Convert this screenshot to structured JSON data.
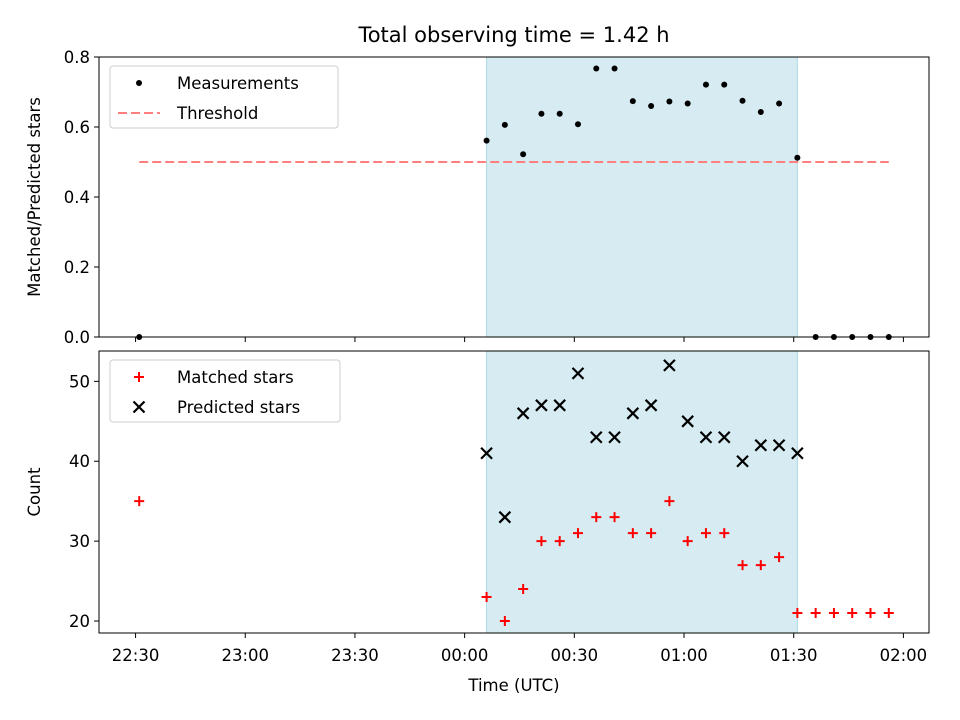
{
  "chart_data": {
    "title": "Total observing time = 1.42 h",
    "xlabel": "Time (UTC)",
    "x_ticks": [
      "22:30",
      "23:00",
      "23:30",
      "00:00",
      "00:30",
      "01:00",
      "01:30",
      "02:00"
    ],
    "x_tick_hours": [
      -1.5,
      -1.0,
      -0.5,
      0.0,
      0.5,
      1.0,
      1.5,
      2.0
    ],
    "xlim": [
      "22:20",
      "02:07"
    ],
    "shaded_span": {
      "start": "00:06",
      "end": "01:31",
      "color": "#add8e6"
    },
    "charts": [
      {
        "type": "scatter",
        "ylabel": "Matched/Predicted stars",
        "ylim": [
          0,
          0.8
        ],
        "yticks": [
          "0.0",
          "0.2",
          "0.4",
          "0.6",
          "0.8"
        ],
        "legend_placement": "upper-left",
        "series": [
          {
            "name": "Measurements",
            "marker": "dot",
            "color": "#000000",
            "x": [
              "22:31",
              "00:06",
              "00:11",
              "00:16",
              "00:21",
              "00:26",
              "00:31",
              "00:36",
              "00:41",
              "00:46",
              "00:51",
              "00:56",
              "01:01",
              "01:06",
              "01:11",
              "01:16",
              "01:21",
              "01:26",
              "01:31",
              "01:36",
              "01:41",
              "01:46",
              "01:51",
              "01:56"
            ],
            "y": [
              0,
              0.561,
              0.606,
              0.522,
              0.638,
              0.638,
              0.608,
              0.767,
              0.767,
              0.674,
              0.66,
              0.673,
              0.667,
              0.721,
              0.721,
              0.675,
              0.643,
              0.667,
              0.512,
              0,
              0,
              0,
              0,
              0
            ]
          },
          {
            "name": "Threshold",
            "type": "line",
            "style": "dashed",
            "color": "#ff7f7f",
            "x": [
              "22:31",
              "01:56"
            ],
            "y": [
              0.5,
              0.5
            ]
          }
        ]
      },
      {
        "type": "scatter",
        "ylabel": "Count",
        "ylim": [
          18.5,
          53.8
        ],
        "yticks": [
          "20",
          "30",
          "40",
          "50"
        ],
        "legend_placement": "upper-left",
        "series": [
          {
            "name": "Matched stars",
            "marker": "plus",
            "color": "#ff0000",
            "x": [
              "22:31",
              "00:06",
              "00:11",
              "00:16",
              "00:21",
              "00:26",
              "00:31",
              "00:36",
              "00:41",
              "00:46",
              "00:51",
              "00:56",
              "01:01",
              "01:06",
              "01:11",
              "01:16",
              "01:21",
              "01:26",
              "01:31",
              "01:36",
              "01:41",
              "01:46",
              "01:51",
              "01:56"
            ],
            "y": [
              35,
              23,
              20,
              24,
              30,
              30,
              31,
              33,
              33,
              31,
              31,
              35,
              30,
              31,
              31,
              27,
              27,
              28,
              21,
              21,
              21,
              21,
              21,
              21
            ]
          },
          {
            "name": "Predicted stars",
            "marker": "x",
            "color": "#000000",
            "x": [
              "00:06",
              "00:11",
              "00:16",
              "00:21",
              "00:26",
              "00:31",
              "00:36",
              "00:41",
              "00:46",
              "00:51",
              "00:56",
              "01:01",
              "01:06",
              "01:11",
              "01:16",
              "01:21",
              "01:26",
              "01:31"
            ],
            "y": [
              41,
              33,
              46,
              47,
              47,
              51,
              43,
              43,
              46,
              47,
              52,
              45,
              43,
              43,
              40,
              42,
              42,
              41
            ]
          }
        ]
      }
    ]
  }
}
